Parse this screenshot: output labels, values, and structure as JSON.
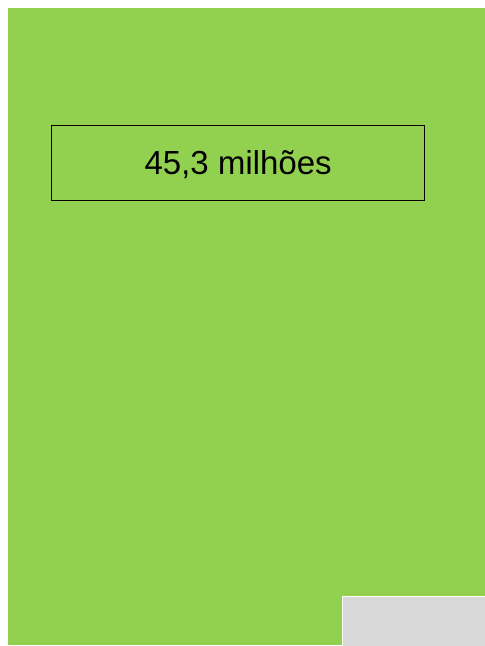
{
  "label": "45,3 milhões"
}
